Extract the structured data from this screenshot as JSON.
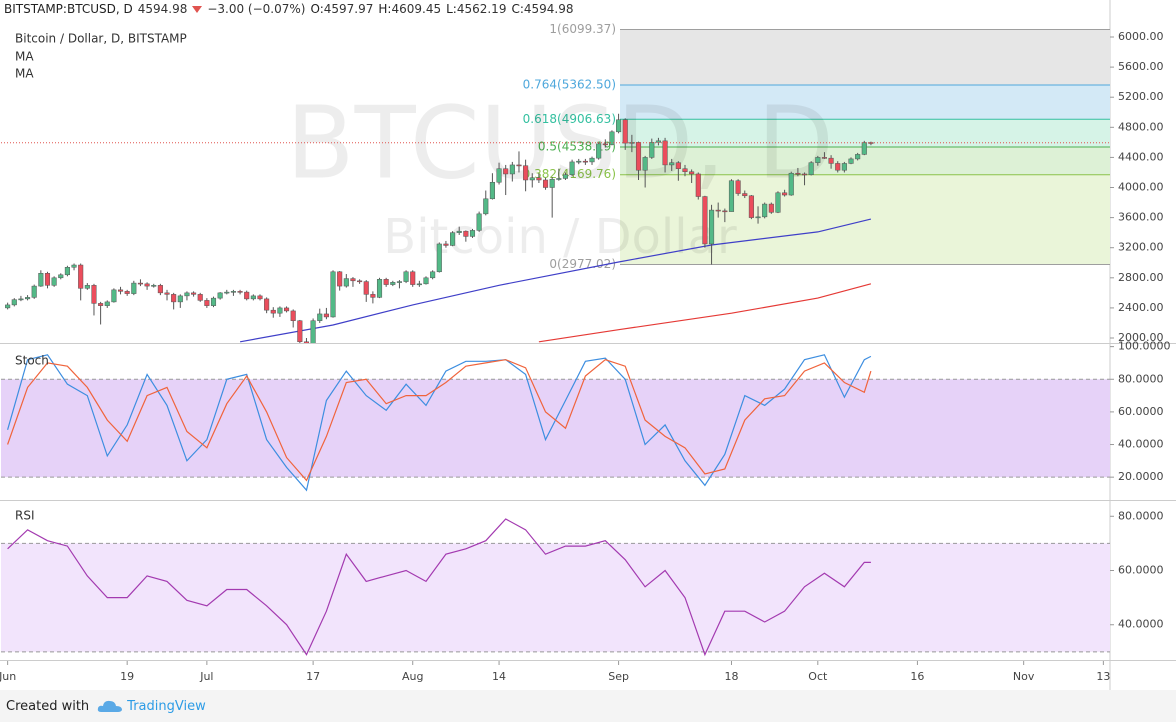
{
  "header": {
    "symbol": "BITSTAMP:BTCUSD, D",
    "last": "4594.98",
    "change": "−3.00 (−0.07%)",
    "ohlc": [
      {
        "label": "O:",
        "value": "4597.97"
      },
      {
        "label": "H:",
        "value": "4609.45"
      },
      {
        "label": "L:",
        "value": "4562.19"
      },
      {
        "label": "C:",
        "value": "4594.98"
      }
    ]
  },
  "footer": {
    "text": "Created with",
    "brand": "TradingView"
  },
  "chart_data": [
    {
      "type": "candlestick",
      "title": "Bitcoin / Dollar, D, BITSTAMP",
      "watermark": [
        "BTCUSD, D",
        "Bitcoin / Dollar"
      ],
      "up_color": "#53b987",
      "down_color": "#eb4d5c",
      "last_line_color": "#e0534f",
      "xlim": [
        "05-31",
        "11-14"
      ],
      "xticks": [
        {
          "value": "06-01",
          "label": "Jun"
        },
        {
          "value": "06-19",
          "label": "19"
        },
        {
          "value": "07-01",
          "label": "Jul"
        },
        {
          "value": "07-17",
          "label": "17"
        },
        {
          "value": "08-01",
          "label": "Aug"
        },
        {
          "value": "08-14",
          "label": "14"
        },
        {
          "value": "09-01",
          "label": "Sep"
        },
        {
          "value": "09-18",
          "label": "18"
        },
        {
          "value": "10-01",
          "label": "Oct"
        },
        {
          "value": "10-16",
          "label": "16"
        },
        {
          "value": "11-01",
          "label": "Nov"
        },
        {
          "value": "11-13",
          "label": "13"
        }
      ],
      "ylim": [
        1947,
        6226
      ],
      "yticks": [
        {
          "value": 2000,
          "label": "2000.00"
        },
        {
          "value": 2400,
          "label": "2400.00"
        },
        {
          "value": 2800,
          "label": "2800.00"
        },
        {
          "value": 3200,
          "label": "3200.00"
        },
        {
          "value": 3600,
          "label": "3600.00"
        },
        {
          "value": 4000,
          "label": "4000.00"
        },
        {
          "value": 4400,
          "label": "4400.00"
        },
        {
          "value": 4800,
          "label": "4800.00"
        },
        {
          "value": 5200,
          "label": "5200.00"
        },
        {
          "value": 5600,
          "label": "5600.00"
        },
        {
          "value": 6000,
          "label": "6000.00"
        }
      ],
      "x": [
        "06-01",
        "06-02",
        "06-03",
        "06-04",
        "06-05",
        "06-06",
        "06-07",
        "06-08",
        "06-09",
        "06-10",
        "06-11",
        "06-12",
        "06-13",
        "06-14",
        "06-15",
        "06-16",
        "06-17",
        "06-18",
        "06-19",
        "06-20",
        "06-21",
        "06-22",
        "06-23",
        "06-24",
        "06-25",
        "06-26",
        "06-27",
        "06-28",
        "06-29",
        "06-30",
        "07-01",
        "07-02",
        "07-03",
        "07-04",
        "07-05",
        "07-06",
        "07-07",
        "07-08",
        "07-09",
        "07-10",
        "07-11",
        "07-12",
        "07-13",
        "07-14",
        "07-15",
        "07-16",
        "07-17",
        "07-18",
        "07-19",
        "07-20",
        "07-21",
        "07-22",
        "07-23",
        "07-24",
        "07-25",
        "07-26",
        "07-27",
        "07-28",
        "07-29",
        "07-30",
        "07-31",
        "08-01",
        "08-02",
        "08-03",
        "08-04",
        "08-05",
        "08-06",
        "08-07",
        "08-08",
        "08-09",
        "08-10",
        "08-11",
        "08-12",
        "08-13",
        "08-14",
        "08-15",
        "08-16",
        "08-17",
        "08-18",
        "08-19",
        "08-20",
        "08-21",
        "08-22",
        "08-23",
        "08-24",
        "08-25",
        "08-26",
        "08-27",
        "08-28",
        "08-29",
        "08-30",
        "08-31",
        "09-01",
        "09-02",
        "09-03",
        "09-04",
        "09-05",
        "09-06",
        "09-07",
        "09-08",
        "09-09",
        "09-10",
        "09-11",
        "09-12",
        "09-13",
        "09-14",
        "09-15",
        "09-16",
        "09-17",
        "09-18",
        "09-19",
        "09-20",
        "09-21",
        "09-22",
        "09-23",
        "09-24",
        "09-25",
        "09-26",
        "09-27",
        "09-28",
        "09-29",
        "09-30",
        "10-01",
        "10-02",
        "10-03",
        "10-04",
        "10-05",
        "10-06",
        "10-07",
        "10-08",
        "10-09"
      ],
      "open": [
        2400,
        2440,
        2510,
        2520,
        2540,
        2690,
        2860,
        2700,
        2800,
        2840,
        2940,
        2970,
        2660,
        2700,
        2460,
        2430,
        2480,
        2640,
        2620,
        2590,
        2730,
        2720,
        2690,
        2700,
        2600,
        2580,
        2480,
        2560,
        2600,
        2580,
        2500,
        2430,
        2530,
        2600,
        2610,
        2620,
        2610,
        2520,
        2560,
        2520,
        2370,
        2330,
        2400,
        2360,
        2230,
        1950,
        1930,
        2230,
        2320,
        2280,
        2880,
        2690,
        2790,
        2760,
        2750,
        2580,
        2540,
        2780,
        2710,
        2740,
        2750,
        2880,
        2710,
        2720,
        2800,
        2880,
        3250,
        3230,
        3400,
        3420,
        3350,
        3430,
        3650,
        3850,
        4070,
        4250,
        4180,
        4300,
        4290,
        4100,
        4130,
        4100,
        4000,
        4110,
        4120,
        4170,
        4340,
        4350,
        4340,
        4390,
        4580,
        4570,
        4740,
        4900,
        4590,
        4600,
        4230,
        4400,
        4600,
        4620,
        4300,
        4330,
        4250,
        4210,
        4180,
        3880,
        3250,
        3700,
        3690,
        3680,
        4090,
        3920,
        3890,
        3600,
        3610,
        3780,
        3670,
        3930,
        3900,
        4190,
        4180,
        4170,
        4330,
        4400,
        4390,
        4320,
        4230,
        4320,
        4380,
        4440,
        4597.97
      ],
      "high": [
        2470,
        2530,
        2560,
        2570,
        2710,
        2900,
        2880,
        2820,
        2860,
        2960,
        2990,
        2990,
        2730,
        2720,
        2480,
        2500,
        2660,
        2680,
        2640,
        2760,
        2780,
        2740,
        2720,
        2720,
        2640,
        2600,
        2580,
        2620,
        2620,
        2600,
        2530,
        2550,
        2610,
        2640,
        2640,
        2640,
        2630,
        2580,
        2580,
        2540,
        2410,
        2420,
        2420,
        2380,
        2240,
        2000,
        2260,
        2390,
        2400,
        2900,
        2890,
        2850,
        2810,
        2780,
        2770,
        2620,
        2800,
        2800,
        2760,
        2770,
        2900,
        2900,
        2760,
        2820,
        2900,
        3270,
        3290,
        3420,
        3480,
        3430,
        3450,
        3680,
        3960,
        4190,
        4330,
        4300,
        4340,
        4480,
        4370,
        4190,
        4190,
        4130,
        4140,
        4250,
        4200,
        4370,
        4380,
        4380,
        4410,
        4600,
        4640,
        4760,
        4980,
        4920,
        4700,
        4610,
        4420,
        4650,
        4660,
        4660,
        4380,
        4350,
        4300,
        4240,
        4200,
        3890,
        3770,
        3800,
        3720,
        4110,
        4110,
        3960,
        3900,
        3750,
        3800,
        3800,
        3950,
        3970,
        4210,
        4260,
        4200,
        4350,
        4420,
        4470,
        4430,
        4350,
        4340,
        4400,
        4460,
        4620,
        4609.45
      ],
      "low": [
        2380,
        2420,
        2490,
        2500,
        2520,
        2680,
        2660,
        2680,
        2780,
        2820,
        2900,
        2500,
        2640,
        2300,
        2180,
        2400,
        2470,
        2580,
        2560,
        2570,
        2690,
        2640,
        2670,
        2570,
        2500,
        2380,
        2400,
        2500,
        2550,
        2480,
        2400,
        2410,
        2510,
        2580,
        2560,
        2580,
        2500,
        2500,
        2500,
        2330,
        2270,
        2280,
        2340,
        2140,
        1930,
        1840,
        1920,
        2200,
        2250,
        2270,
        2630,
        2670,
        2680,
        2720,
        2480,
        2460,
        2530,
        2680,
        2690,
        2660,
        2730,
        2680,
        2680,
        2710,
        2780,
        2870,
        3200,
        3220,
        3370,
        3280,
        3330,
        3410,
        3630,
        3840,
        4040,
        3900,
        4080,
        4200,
        3950,
        4000,
        4060,
        3970,
        3600,
        4090,
        4100,
        4150,
        4310,
        4300,
        4300,
        4370,
        4530,
        4560,
        4720,
        4500,
        4470,
        4100,
        4000,
        4380,
        4560,
        4200,
        4220,
        4090,
        4150,
        4060,
        3840,
        3200,
        2977.02,
        3600,
        3540,
        3680,
        3890,
        3860,
        3580,
        3520,
        3590,
        3650,
        3660,
        3880,
        3890,
        4150,
        4030,
        4160,
        4290,
        4380,
        4250,
        4200,
        4200,
        4310,
        4360,
        4430,
        4562.19
      ],
      "close": [
        2440,
        2510,
        2520,
        2540,
        2690,
        2860,
        2700,
        2800,
        2840,
        2940,
        2970,
        2660,
        2700,
        2460,
        2430,
        2480,
        2640,
        2620,
        2590,
        2730,
        2720,
        2690,
        2700,
        2600,
        2580,
        2480,
        2560,
        2600,
        2580,
        2500,
        2430,
        2530,
        2600,
        2610,
        2620,
        2610,
        2520,
        2560,
        2520,
        2370,
        2330,
        2400,
        2360,
        2230,
        1950,
        1930,
        2230,
        2320,
        2280,
        2880,
        2690,
        2790,
        2760,
        2750,
        2580,
        2540,
        2780,
        2710,
        2740,
        2750,
        2880,
        2710,
        2720,
        2800,
        2880,
        3250,
        3230,
        3400,
        3420,
        3350,
        3430,
        3650,
        3850,
        4070,
        4250,
        4180,
        4300,
        4290,
        4100,
        4130,
        4100,
        4000,
        4110,
        4120,
        4170,
        4340,
        4350,
        4340,
        4390,
        4580,
        4570,
        4740,
        4900,
        4590,
        4600,
        4230,
        4400,
        4600,
        4620,
        4300,
        4330,
        4250,
        4210,
        4180,
        3880,
        3250,
        3700,
        3690,
        3680,
        4090,
        3920,
        3890,
        3600,
        3610,
        3780,
        3670,
        3930,
        3900,
        4190,
        4180,
        4170,
        4330,
        4400,
        4390,
        4320,
        4230,
        4320,
        4380,
        4440,
        4597.97,
        4594.98
      ],
      "series": [
        {
          "name": "MA",
          "color": "#3f3fc8",
          "x": [
            "07-06",
            "07-20",
            "08-01",
            "08-14",
            "09-01",
            "09-15",
            "10-01",
            "10-09"
          ],
          "values": [
            1950,
            2173,
            2440,
            2700,
            3010,
            3236,
            3410,
            3580
          ]
        },
        {
          "name": "MA",
          "color": "#e53935",
          "x": [
            "08-20",
            "09-01",
            "09-18",
            "10-01",
            "10-09"
          ],
          "values": [
            1950,
            2110,
            2330,
            2530,
            2720
          ]
        }
      ],
      "fib": [
        {
          "value": 6099.37,
          "label": "1(6099.37)",
          "color": "#9e9e9e",
          "fill": "#e6e6e6"
        },
        {
          "value": 5362.5,
          "label": "0.764(5362.50)",
          "color": "#4fa8dc",
          "fill": "#d3e9f6"
        },
        {
          "value": 4906.63,
          "label": "0.618(4906.63)",
          "color": "#34c0a0",
          "fill": "#d6f3e7"
        },
        {
          "value": 4538.19,
          "label": "0.5(4538.19)",
          "color": "#4caf50",
          "fill": "#ddf1d6"
        },
        {
          "value": 4169.76,
          "label": "0.382(4169.76)",
          "color": "#8bc34a",
          "fill": "#eaf5d9"
        },
        {
          "value": 2977.02,
          "label": "0(2977.02)",
          "color": "#9e9e9e"
        }
      ]
    },
    {
      "type": "line",
      "title": "Stoch",
      "band": [
        20,
        80
      ],
      "band_color": "#e6d2f8",
      "ylim": [
        6,
        101
      ],
      "yticks": [
        {
          "value": 20,
          "label": "20.0000"
        },
        {
          "value": 40,
          "label": "40.0000"
        },
        {
          "value": 60,
          "label": "60.0000"
        },
        {
          "value": 80,
          "label": "80.0000"
        },
        {
          "value": 100,
          "label": "100.0000"
        }
      ],
      "x": [
        "06-01",
        "06-04",
        "06-07",
        "06-10",
        "06-13",
        "06-16",
        "06-19",
        "06-22",
        "06-25",
        "06-28",
        "07-01",
        "07-04",
        "07-07",
        "07-10",
        "07-13",
        "07-16",
        "07-19",
        "07-22",
        "07-25",
        "07-28",
        "07-31",
        "08-03",
        "08-06",
        "08-09",
        "08-12",
        "08-15",
        "08-18",
        "08-21",
        "08-24",
        "08-27",
        "08-30",
        "09-02",
        "09-05",
        "09-08",
        "09-11",
        "09-14",
        "09-17",
        "09-20",
        "09-23",
        "09-26",
        "09-29",
        "10-02",
        "10-05",
        "10-08",
        "10-09"
      ],
      "series": [
        {
          "color": "#3d8ee0",
          "values": [
            49,
            92,
            95,
            77,
            70,
            33,
            52,
            83,
            64,
            30,
            43,
            80,
            83,
            43,
            26,
            12,
            67,
            85,
            70,
            61,
            77,
            64,
            85,
            91,
            91,
            92,
            83,
            43,
            67,
            91,
            93,
            80,
            40,
            52,
            30,
            15,
            34,
            70,
            64,
            74,
            92,
            95,
            69,
            92,
            94
          ]
        },
        {
          "color": "#f0643c",
          "values": [
            40,
            75,
            90,
            88,
            75,
            55,
            42,
            70,
            75,
            48,
            38,
            65,
            82,
            60,
            32,
            18,
            45,
            78,
            80,
            65,
            70,
            70,
            78,
            88,
            90,
            92,
            87,
            60,
            50,
            82,
            92,
            88,
            55,
            45,
            38,
            22,
            25,
            55,
            68,
            70,
            85,
            90,
            78,
            72,
            85
          ]
        }
      ]
    },
    {
      "type": "line",
      "title": "RSI",
      "band": [
        30,
        70
      ],
      "band_color": "#f2e4fc",
      "ylim": [
        27,
        86
      ],
      "yticks": [
        {
          "value": 40,
          "label": "40.0000"
        },
        {
          "value": 60,
          "label": "60.0000"
        },
        {
          "value": 80,
          "label": "80.0000"
        }
      ],
      "x": [
        "06-01",
        "06-04",
        "06-07",
        "06-10",
        "06-13",
        "06-16",
        "06-19",
        "06-22",
        "06-25",
        "06-28",
        "07-01",
        "07-04",
        "07-07",
        "07-10",
        "07-13",
        "07-16",
        "07-19",
        "07-22",
        "07-25",
        "07-28",
        "07-31",
        "08-03",
        "08-06",
        "08-09",
        "08-12",
        "08-15",
        "08-18",
        "08-21",
        "08-24",
        "08-27",
        "08-30",
        "09-02",
        "09-05",
        "09-08",
        "09-11",
        "09-14",
        "09-17",
        "09-20",
        "09-23",
        "09-26",
        "09-29",
        "10-02",
        "10-05",
        "10-08",
        "10-09"
      ],
      "series": [
        {
          "color": "#a33ab0",
          "values": [
            68,
            75,
            71,
            69,
            58,
            50,
            50,
            58,
            56,
            49,
            47,
            53,
            53,
            47,
            40,
            29,
            45,
            66,
            56,
            58,
            60,
            56,
            66,
            68,
            71,
            79,
            75,
            66,
            69,
            69,
            71,
            64,
            54,
            60,
            50,
            29,
            45,
            45,
            41,
            45,
            54,
            59,
            54,
            63,
            63
          ]
        }
      ]
    }
  ]
}
